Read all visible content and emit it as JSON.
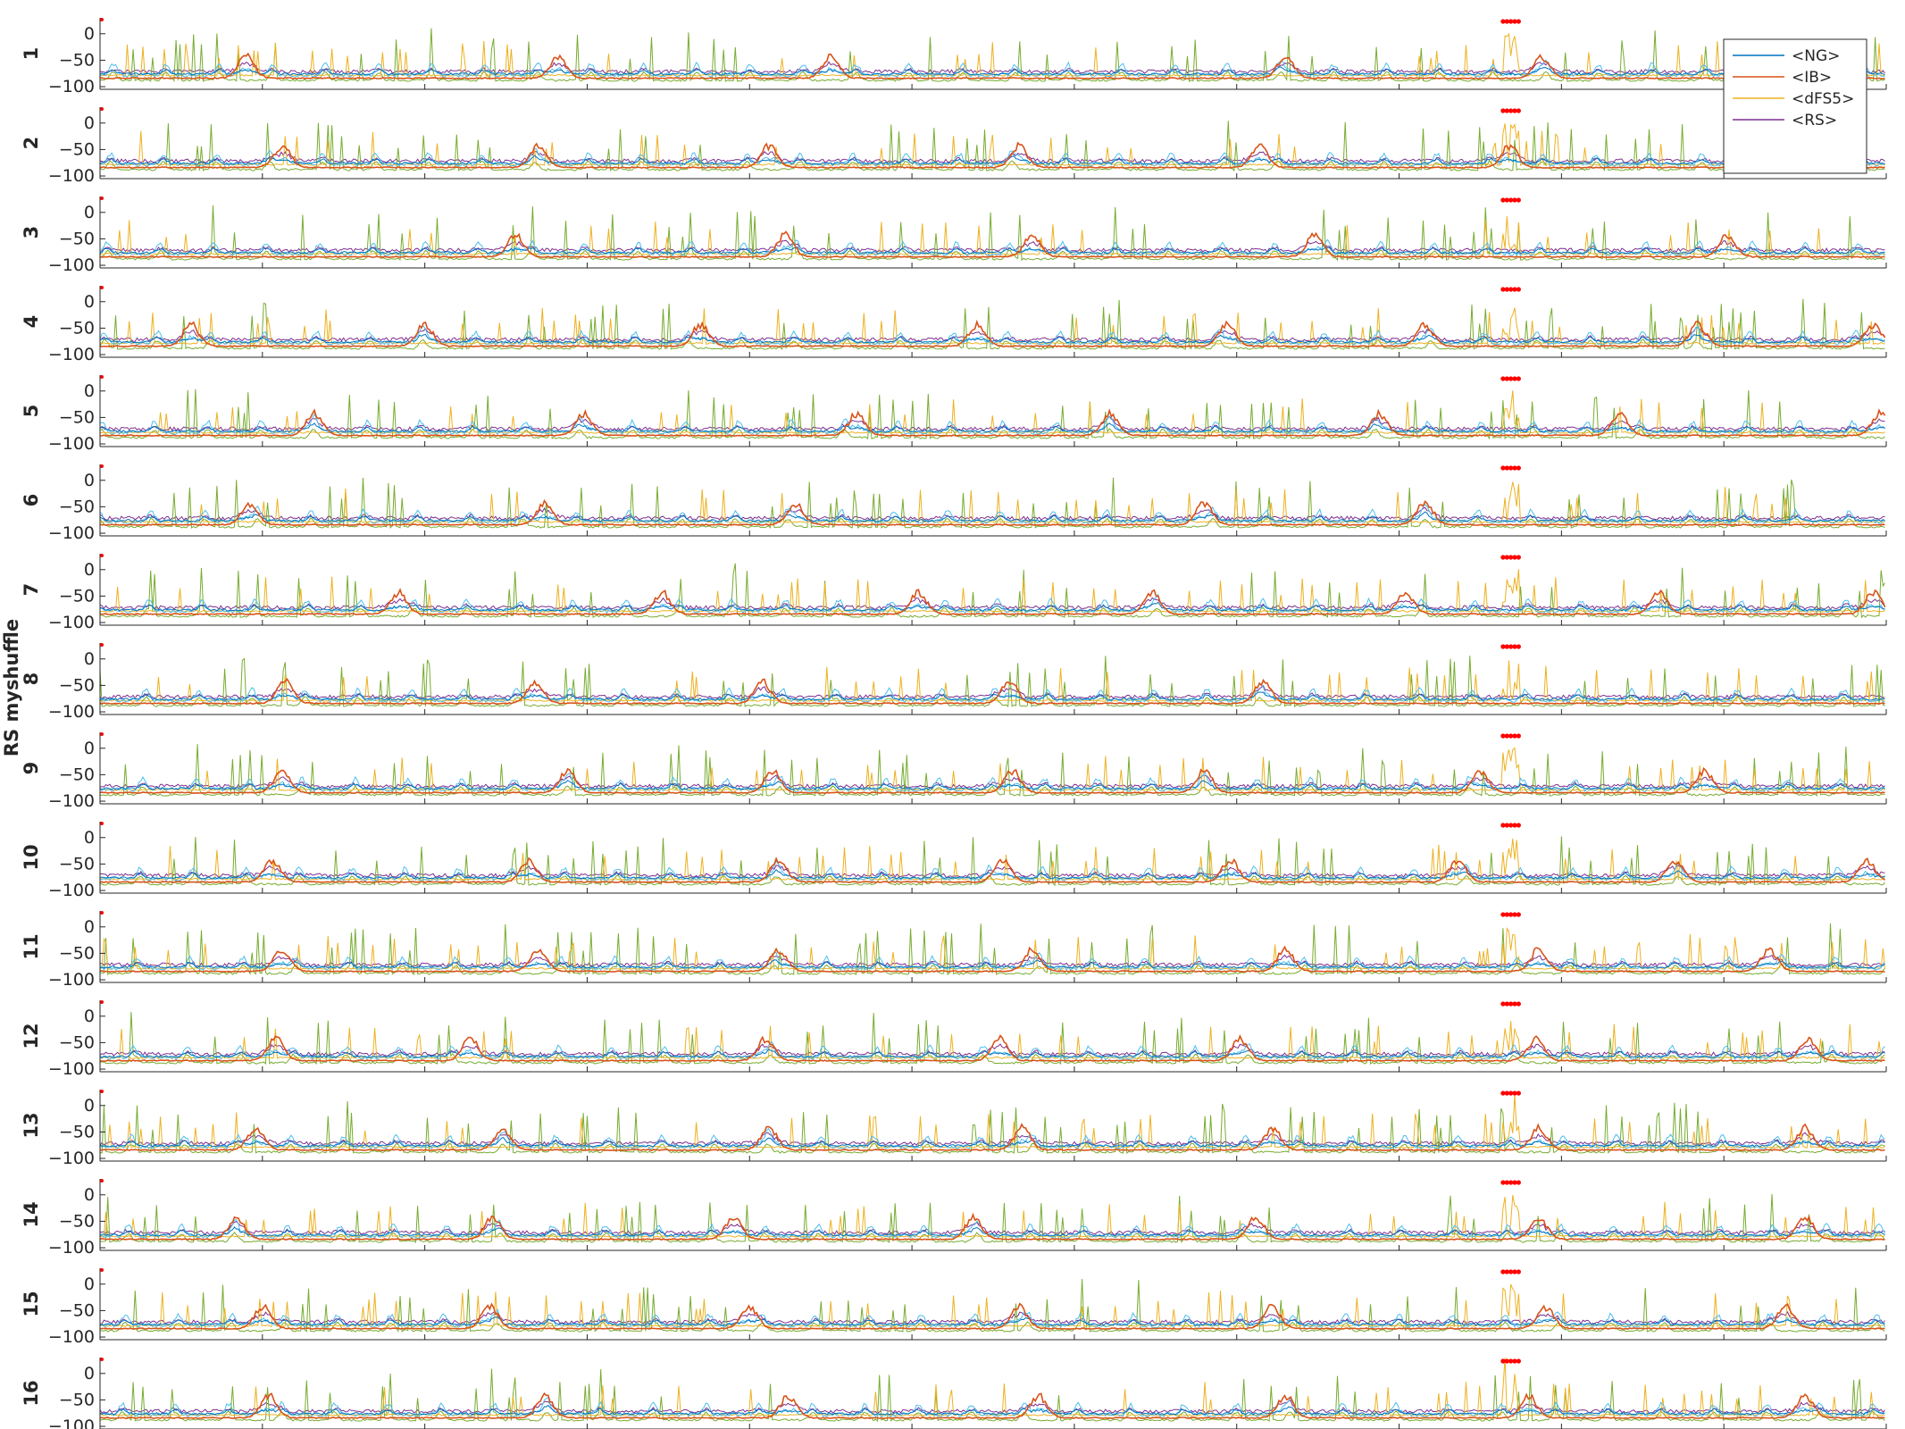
{
  "chart_data": {
    "type": "line",
    "title": "",
    "ylabel": "RS myshuffle",
    "xlim": [
      0,
      5500
    ],
    "ylim": [
      -105,
      30
    ],
    "x_ticks": [
      0,
      500,
      1000,
      1500,
      2000,
      2500,
      3000,
      3500,
      4000,
      4500,
      5000,
      5500
    ],
    "y_ticks": [
      0,
      -50,
      -100
    ],
    "grid": false,
    "legend_position": "top-right",
    "series": [
      {
        "name": "<NG>",
        "color": "#0072BD"
      },
      {
        "name": "<IB>",
        "color": "#D95319"
      },
      {
        "name": "<dFS5>",
        "color": "#EDB120"
      },
      {
        "name": "<RS>",
        "color": "#7E2F8E"
      }
    ],
    "other_trace_colors": [
      "#77AC30",
      "#4DBEEE"
    ],
    "stimulus_marker_color": "#FF0000",
    "stimulus_window": [
      4320,
      4370
    ],
    "rows": [
      {
        "label": "1",
        "burst_times": [
          450,
          1410,
          2250,
          3650,
          4440
        ]
      },
      {
        "label": "2",
        "burst_times": [
          560,
          1350,
          2060,
          2830,
          3570,
          4340,
          5130
        ]
      },
      {
        "label": "3",
        "burst_times": [
          1280,
          2110,
          2870,
          3740,
          5010
        ]
      },
      {
        "label": "4",
        "burst_times": [
          280,
          1000,
          1850,
          2700,
          3470,
          4080,
          4920,
          5460
        ]
      },
      {
        "label": "5",
        "burst_times": [
          660,
          1490,
          2330,
          3110,
          3940,
          4680,
          5480
        ]
      },
      {
        "label": "6",
        "burst_times": [
          460,
          1370,
          2140,
          3400,
          4080
        ]
      },
      {
        "label": "7",
        "burst_times": [
          920,
          1730,
          2520,
          3240,
          4020,
          4800,
          5460
        ]
      },
      {
        "label": "8",
        "burst_times": [
          570,
          1340,
          2040,
          2800,
          3580
        ]
      },
      {
        "label": "9",
        "burst_times": [
          560,
          1440,
          2070,
          2810,
          3400,
          4250,
          4940
        ]
      },
      {
        "label": "10",
        "burst_times": [
          530,
          1320,
          2090,
          2780,
          3480,
          4180,
          4850,
          5440
        ]
      },
      {
        "label": "11",
        "burst_times": [
          560,
          1350,
          2090,
          2870,
          3650,
          4430,
          5140
        ]
      },
      {
        "label": "12",
        "burst_times": [
          540,
          1140,
          2050,
          2770,
          3510,
          4420,
          5260
        ]
      },
      {
        "label": "13",
        "burst_times": [
          480,
          1240,
          2060,
          2840,
          3610,
          4430,
          5250
        ]
      },
      {
        "label": "14",
        "burst_times": [
          420,
          1210,
          1950,
          2690,
          3560,
          4430,
          5250
        ]
      },
      {
        "label": "15",
        "burst_times": [
          500,
          1200,
          2000,
          2830,
          3610,
          4450,
          5190
        ]
      },
      {
        "label": "16",
        "burst_times": [
          520,
          1370,
          2120,
          2890,
          3650,
          4400,
          5250
        ]
      }
    ]
  }
}
